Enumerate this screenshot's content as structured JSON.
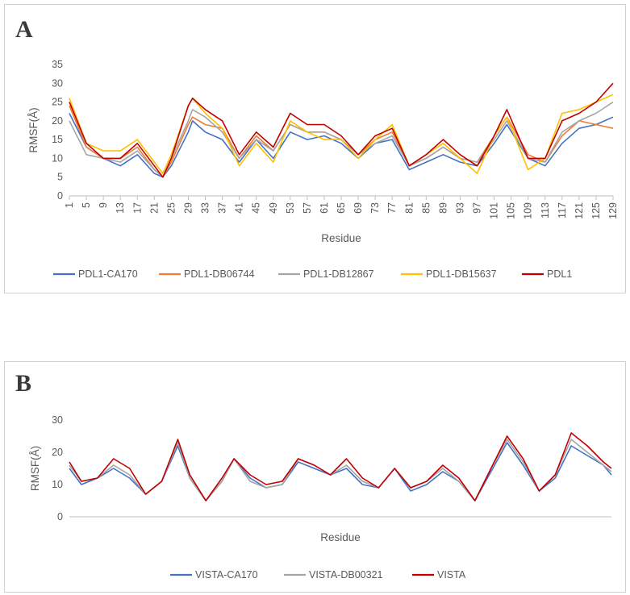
{
  "chart_data": [
    {
      "panel": "A",
      "type": "line",
      "xlabel": "Residue",
      "ylabel": "RMSF(Å)",
      "ylim": [
        0,
        35
      ],
      "yticks": [
        0,
        5,
        10,
        15,
        20,
        25,
        30,
        35
      ],
      "xlim": [
        1,
        129
      ],
      "xticks": [
        1,
        5,
        9,
        13,
        17,
        21,
        25,
        29,
        33,
        37,
        41,
        45,
        49,
        53,
        57,
        61,
        65,
        69,
        73,
        77,
        81,
        85,
        89,
        93,
        97,
        101,
        105,
        109,
        113,
        117,
        121,
        125,
        129
      ],
      "grid": false,
      "legend": "bottom",
      "x": [
        1,
        5,
        9,
        13,
        17,
        21,
        23,
        25,
        29,
        30,
        33,
        37,
        41,
        45,
        49,
        53,
        57,
        61,
        65,
        69,
        73,
        77,
        81,
        85,
        89,
        93,
        97,
        101,
        104,
        109,
        113,
        117,
        121,
        125,
        129
      ],
      "series": [
        {
          "name": "PDL1-CA170",
          "color": "#4472c4",
          "values": [
            22,
            13,
            10,
            8,
            11,
            6,
            5,
            8,
            17,
            20,
            17,
            15,
            9,
            15,
            10,
            17,
            15,
            16,
            14,
            10,
            14,
            15,
            7,
            9,
            11,
            9,
            8,
            14,
            19,
            10,
            8,
            14,
            18,
            19,
            21
          ]
        },
        {
          "name": "PDL1-DB06744",
          "color": "#ed7d31",
          "values": [
            24,
            13,
            10,
            10,
            13,
            7,
            5,
            9,
            19,
            21,
            19,
            18,
            10,
            16,
            12,
            19,
            17,
            17,
            15,
            11,
            15,
            17,
            8,
            10,
            13,
            10,
            9,
            16,
            21,
            11,
            9,
            16,
            20,
            19,
            18
          ]
        },
        {
          "name": "PDL1-DB12867",
          "color": "#a5a5a5",
          "values": [
            20,
            11,
            10,
            9,
            12,
            7,
            5,
            10,
            20,
            23,
            21,
            17,
            10,
            15,
            12,
            19,
            17,
            17,
            15,
            11,
            14,
            16,
            8,
            10,
            13,
            10,
            9,
            15,
            20,
            10,
            9,
            17,
            20,
            22,
            25
          ]
        },
        {
          "name": "PDL1-DB15637",
          "color": "#ffc000",
          "values": [
            26,
            14,
            12,
            12,
            15,
            9,
            6,
            11,
            24,
            26,
            22,
            18,
            8,
            14,
            9,
            20,
            17,
            15,
            15,
            10,
            15,
            19,
            8,
            11,
            14,
            10,
            6,
            16,
            21,
            7,
            10,
            22,
            23,
            25,
            27
          ]
        },
        {
          "name": "PDL1",
          "color": "#c00000",
          "values": [
            25,
            14,
            10,
            10,
            14,
            8,
            5,
            10,
            24,
            26,
            23,
            20,
            11,
            17,
            13,
            22,
            19,
            19,
            16,
            11,
            16,
            18,
            8,
            11,
            15,
            11,
            8,
            16,
            23,
            10,
            10,
            20,
            22,
            25,
            30
          ]
        }
      ]
    },
    {
      "panel": "B",
      "type": "line",
      "xlabel": "Residue",
      "ylabel": "RMSF(Å)",
      "ylim": [
        0,
        30
      ],
      "yticks": [
        0,
        10,
        20,
        30
      ],
      "xlim": [
        1,
        136
      ],
      "grid": false,
      "legend": "bottom",
      "x": [
        1,
        4,
        8,
        12,
        16,
        20,
        24,
        28,
        31,
        35,
        39,
        42,
        46,
        50,
        54,
        58,
        62,
        66,
        70,
        74,
        78,
        82,
        86,
        90,
        94,
        98,
        102,
        106,
        110,
        114,
        118,
        122,
        126,
        130,
        134,
        136
      ],
      "series": [
        {
          "name": "VISTA-CA170",
          "color": "#4472c4",
          "values": [
            15,
            10,
            12,
            15,
            12,
            7,
            11,
            22,
            12,
            5,
            11,
            18,
            12,
            9,
            10,
            17,
            15,
            13,
            15,
            10,
            9,
            15,
            8,
            10,
            14,
            11,
            5,
            14,
            23,
            16,
            8,
            12,
            22,
            19,
            16,
            13
          ]
        },
        {
          "name": "VISTA-DB00321",
          "color": "#a5a5a5",
          "values": [
            16,
            11,
            12,
            16,
            13,
            7,
            11,
            23,
            12,
            5,
            11,
            18,
            11,
            9,
            10,
            18,
            16,
            13,
            16,
            11,
            9,
            15,
            9,
            11,
            15,
            11,
            5,
            15,
            24,
            17,
            8,
            13,
            24,
            20,
            16,
            14
          ]
        },
        {
          "name": "VISTA",
          "color": "#c00000",
          "values": [
            17,
            11,
            12,
            18,
            15,
            7,
            11,
            24,
            13,
            5,
            12,
            18,
            13,
            10,
            11,
            18,
            16,
            13,
            18,
            12,
            9,
            15,
            9,
            11,
            16,
            12,
            5,
            15,
            25,
            18,
            8,
            13,
            26,
            22,
            17,
            15
          ]
        }
      ]
    }
  ],
  "panels": [
    {
      "letter": "A"
    },
    {
      "letter": "B"
    }
  ]
}
